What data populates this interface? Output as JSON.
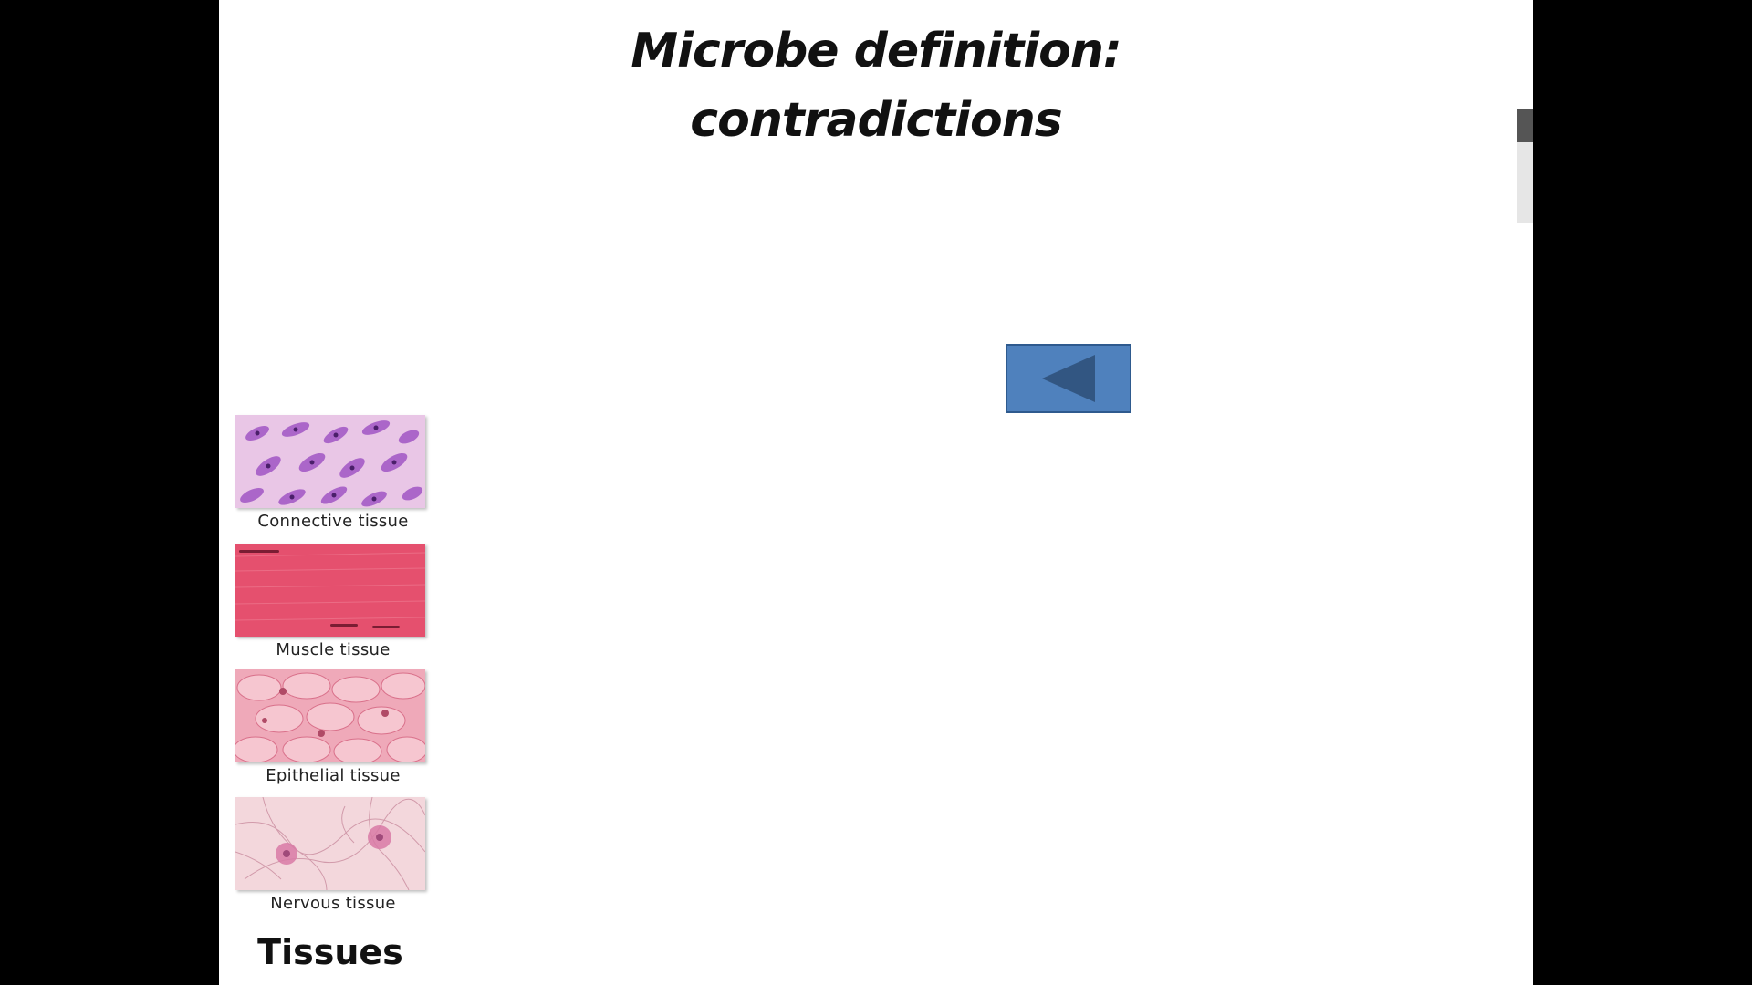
{
  "slide": {
    "title_line1": "Microbe definition:",
    "title_line2": "contradictions"
  },
  "navigation": {
    "back_icon": "triangle-left-icon",
    "button_color": "#4f81bd"
  },
  "tissues": {
    "items": [
      {
        "caption": "Connective tissue",
        "color": "#e9c6e6"
      },
      {
        "caption": "Muscle tissue",
        "color": "#e5506e"
      },
      {
        "caption": "Epithelial tissue",
        "color": "#efa9b9"
      },
      {
        "caption": "Nervous tissue",
        "color": "#f3d7dc"
      }
    ],
    "label": "Tissues"
  }
}
